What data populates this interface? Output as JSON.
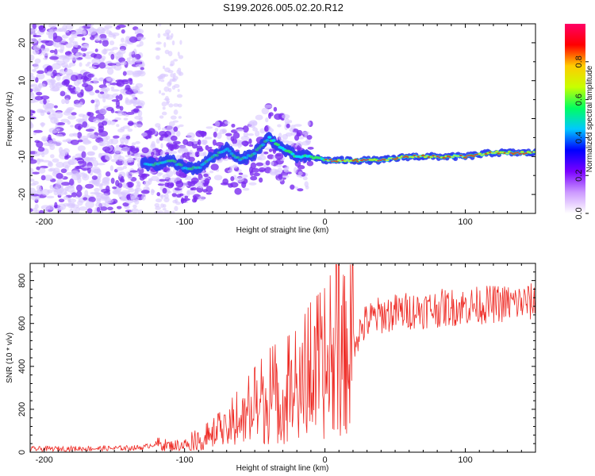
{
  "figure_title": "S199.2026.005.02.20.R12",
  "colors": {
    "snr_line": "#ee2a24",
    "scatter_purple": "#7a2cf0",
    "scatter_light": "#d9c8ff",
    "ridge_blue": "#2f3cf0",
    "ridge_cyan": "#00e0f0",
    "ridge_green": "#2ee86a",
    "ridge_yellow": "#e8ea20",
    "ridge_red": "#ff2020",
    "axis": "#000000"
  },
  "chart_data": [
    {
      "type": "heatmap",
      "title": "",
      "xlabel": "Height of straight line (km)",
      "ylabel": "Frequency (Hz)",
      "xlim": [
        -210,
        150
      ],
      "ylim": [
        -25,
        25
      ],
      "x_ticks": [
        -200,
        -100,
        0,
        100
      ],
      "y_ticks": [
        -20,
        -10,
        0,
        10,
        20
      ],
      "colorbar": {
        "label": "Normalized spectral amplitude",
        "range": [
          0,
          1
        ],
        "ticks": [
          "0.0",
          "0.2",
          "0.4",
          "0.6",
          "0.8"
        ],
        "tick_values": [
          0.0,
          0.2,
          0.4,
          0.6,
          0.8
        ],
        "colormap": [
          "#ffffff",
          "#cc99ff",
          "#7a00ff",
          "#0000ff",
          "#00c8ff",
          "#00ff60",
          "#c8ff00",
          "#ffcc00",
          "#ff0000",
          "#ff0066"
        ]
      },
      "ridge": {
        "description_points_x": [
          -130,
          -120,
          -110,
          -100,
          -90,
          -80,
          -70,
          -60,
          -50,
          -40,
          -30,
          -20,
          -10,
          0,
          20,
          40,
          60,
          80,
          100,
          120,
          150
        ],
        "freq_hz": [
          -12,
          -12,
          -11,
          -13,
          -13,
          -10,
          -8,
          -11,
          -9,
          -5,
          -8,
          -10,
          -10,
          -11,
          -11,
          -11,
          -10,
          -10,
          -10,
          -9,
          -9
        ],
        "amplitude": [
          0.25,
          0.3,
          0.28,
          0.3,
          0.32,
          0.3,
          0.3,
          0.3,
          0.3,
          0.35,
          0.4,
          0.45,
          0.5,
          0.6,
          0.75,
          0.8,
          0.85,
          0.85,
          0.8,
          0.8,
          0.75
        ]
      }
    },
    {
      "type": "line",
      "title": "",
      "xlabel": "Height of straight line (km)",
      "ylabel": "SNR (10 * v/v)",
      "xlim": [
        -210,
        150
      ],
      "ylim": [
        0,
        880
      ],
      "x_ticks": [
        -200,
        -100,
        0,
        100
      ],
      "y_ticks": [
        0,
        200,
        400,
        600,
        800
      ],
      "series": [
        {
          "name": "SNR",
          "trend_x": [
            -210,
            -150,
            -130,
            -120,
            -110,
            -100,
            -90,
            -80,
            -70,
            -60,
            -50,
            -40,
            -30,
            -20,
            -10,
            0,
            10,
            20,
            30,
            40,
            60,
            80,
            100,
            120,
            150
          ],
          "trend_y": [
            15,
            18,
            22,
            40,
            30,
            35,
            50,
            70,
            100,
            140,
            180,
            220,
            240,
            260,
            320,
            350,
            420,
            520,
            610,
            640,
            660,
            670,
            680,
            690,
            700
          ]
        }
      ]
    }
  ]
}
